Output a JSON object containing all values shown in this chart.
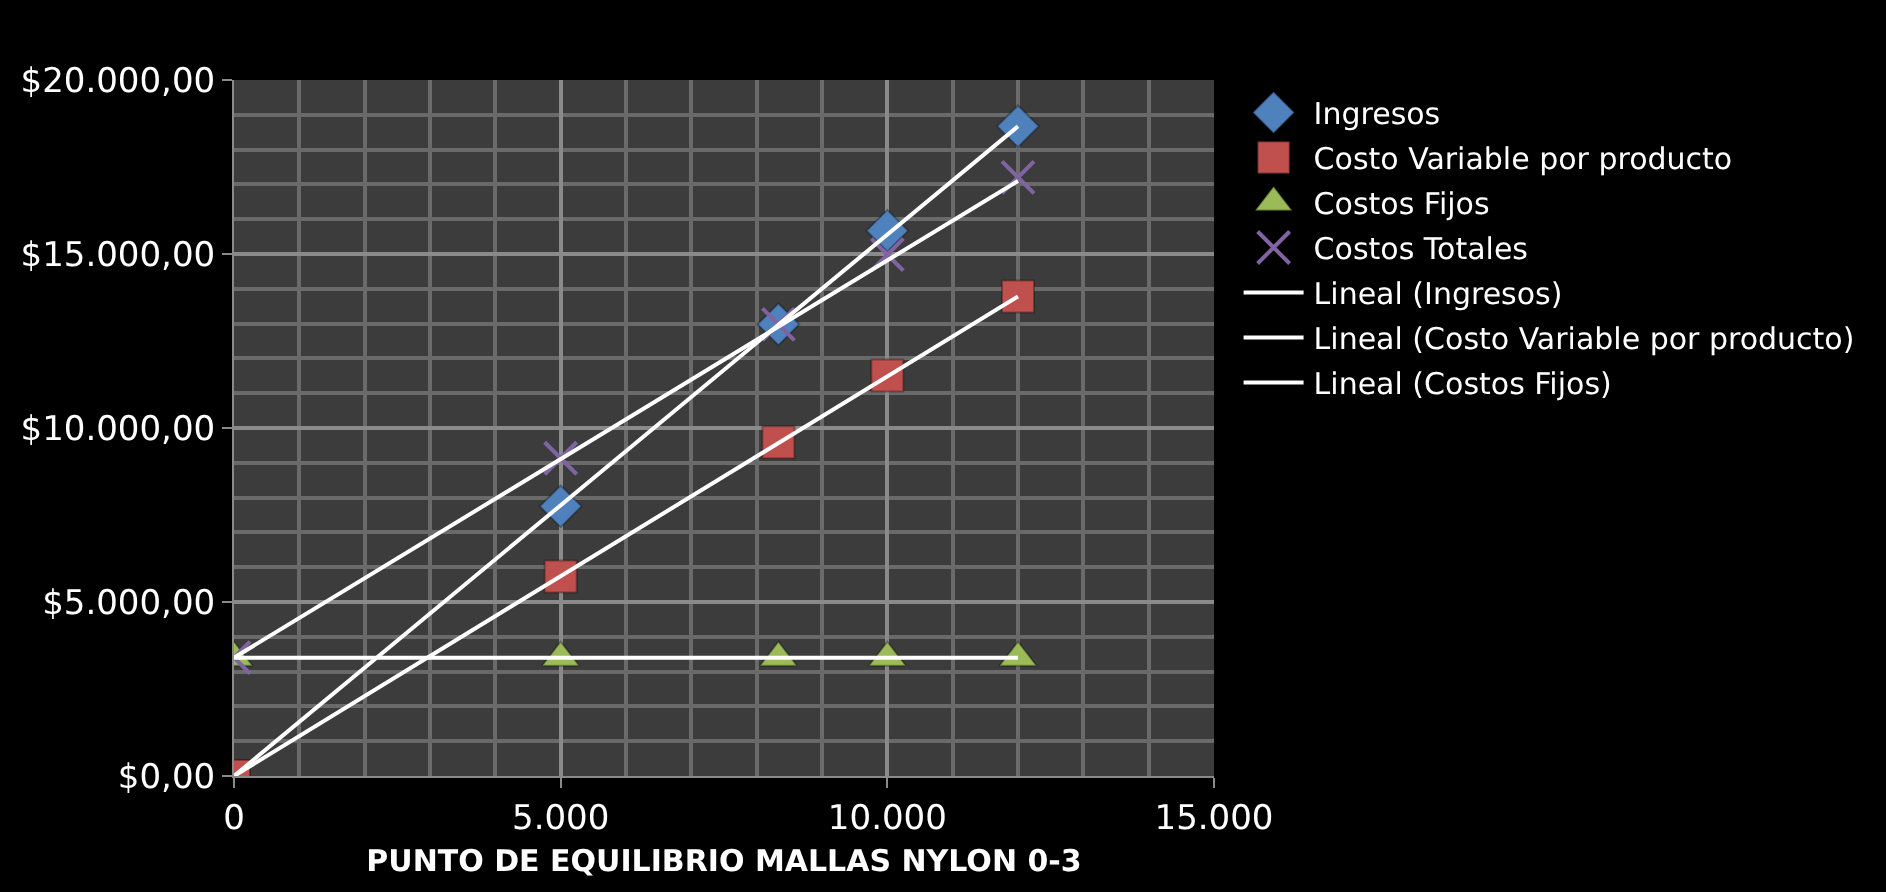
{
  "chart_data": {
    "type": "scatter",
    "xlabel": "PUNTO DE EQUILIBRIO MALLAS NYLON 0-3",
    "x": [
      0,
      5000,
      8333,
      10000,
      12000
    ],
    "series": [
      {
        "name": "Ingresos",
        "color": "#4f81bd",
        "marker": "diamond",
        "values": [
          null,
          7750,
          12980,
          15670,
          18670
        ]
      },
      {
        "name": "Costo Variable por producto",
        "color": "#c0504d",
        "marker": "square",
        "values": [
          0,
          5730,
          9590,
          11510,
          13780
        ]
      },
      {
        "name": "Costos Fijos",
        "color": "#9bbb59",
        "marker": "triangle",
        "values": [
          3400,
          3400,
          3400,
          3400,
          3400
        ]
      },
      {
        "name": "Costos Totales",
        "color": "#8064a2",
        "marker": "cross",
        "values": [
          3400,
          9130,
          12980,
          14980,
          17200
        ]
      },
      {
        "name": "Lineal (Ingresos)",
        "type": "line",
        "color": "#ffffff",
        "marker": "none",
        "values": [
          0,
          null,
          null,
          null,
          18670
        ]
      },
      {
        "name": "Lineal (Costo Variable por producto)",
        "type": "line",
        "color": "#ffffff",
        "marker": "none",
        "values": [
          0,
          null,
          null,
          null,
          13780
        ]
      },
      {
        "name": "Lineal (Costos Fijos)",
        "type": "line",
        "color": "#ffffff",
        "marker": "none",
        "values": [
          3400,
          null,
          null,
          null,
          3400
        ]
      },
      {
        "type": "line",
        "color": "#ffffff",
        "marker": "none",
        "values": [
          3400,
          null,
          null,
          null,
          17100
        ]
      }
    ],
    "xlim": [
      0,
      15000
    ],
    "xticks": [
      0,
      {
        "value": 5000,
        "label": "5.000"
      },
      {
        "value": 10000,
        "label": "10.000"
      },
      {
        "value": 15000,
        "label": "15.000"
      }
    ],
    "ylim": [
      0,
      20000
    ],
    "yticks": [
      {
        "value": 0,
        "label": "$0,00"
      },
      {
        "value": 5000,
        "label": "$5.000,00"
      },
      {
        "value": 10000,
        "label": "$10.000,00"
      },
      {
        "value": 15000,
        "label": "$15.000,00"
      },
      {
        "value": 20000,
        "label": "$20.000,00"
      }
    ],
    "grid": true,
    "legend": "right"
  }
}
